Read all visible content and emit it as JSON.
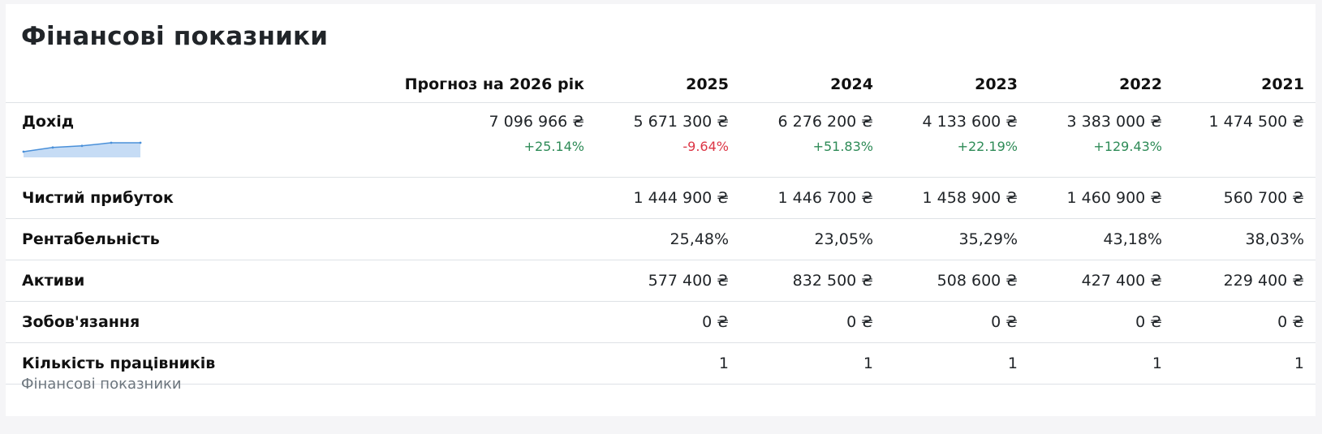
{
  "title": "Фінансові показники",
  "footer": "Фінансові показники",
  "colors": {
    "positive": "#2e8b57",
    "negative": "#dc3545",
    "sparkline": "#4a90d9"
  },
  "headers": {
    "forecast": "Прогноз на 2026 рік",
    "years": [
      "2025",
      "2024",
      "2023",
      "2022",
      "2021"
    ]
  },
  "rows": {
    "revenue": {
      "label": "Дохід",
      "forecast": "7 096 966 ₴",
      "forecast_change": "+25.14%",
      "values": [
        "5 671 300 ₴",
        "6 276 200 ₴",
        "4 133 600 ₴",
        "3 383 000 ₴",
        "1 474 500 ₴"
      ],
      "changes": [
        "-9.64%",
        "+51.83%",
        "+22.19%",
        "+129.43%",
        ""
      ],
      "sparkline": [
        1474500,
        3383000,
        4133600,
        6276200,
        5671300
      ]
    },
    "net_profit": {
      "label": "Чистий прибуток",
      "values": [
        "1 444 900 ₴",
        "1 446 700 ₴",
        "1 458 900 ₴",
        "1 460 900 ₴",
        "560 700 ₴"
      ]
    },
    "profitability": {
      "label": "Рентабельність",
      "values": [
        "25,48%",
        "23,05%",
        "35,29%",
        "43,18%",
        "38,03%"
      ]
    },
    "assets": {
      "label": "Активи",
      "values": [
        "577 400 ₴",
        "832 500 ₴",
        "508 600 ₴",
        "427 400 ₴",
        "229 400 ₴"
      ]
    },
    "liabilities": {
      "label": "Зобов'язання",
      "values": [
        "0 ₴",
        "0 ₴",
        "0 ₴",
        "0 ₴",
        "0 ₴"
      ]
    },
    "employees": {
      "label": "Кількість працівників",
      "values": [
        "1",
        "1",
        "1",
        "1",
        "1"
      ]
    }
  }
}
